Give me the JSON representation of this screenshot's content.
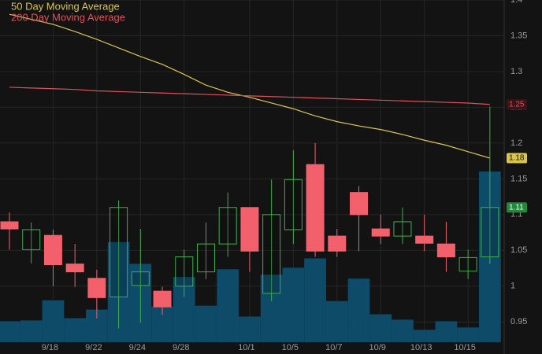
{
  "chart_data": {
    "type": "candlestick",
    "categories": [
      null,
      null,
      "9/18",
      null,
      "9/22",
      null,
      "9/24",
      null,
      "9/28",
      null,
      null,
      "10/1",
      null,
      "10/5",
      null,
      "10/7",
      null,
      "10/9",
      null,
      "10/13",
      null,
      "10/15",
      null
    ],
    "open": [
      1.09,
      1.051,
      1.071,
      1.031,
      1.011,
      0.985,
      1.001,
      0.993,
      1.0,
      1.02,
      1.059,
      1.11,
      0.99,
      1.079,
      1.17,
      1.07,
      1.131,
      1.08,
      1.07,
      1.07,
      1.059,
      1.021,
      1.041
    ],
    "high": [
      1.103,
      1.089,
      1.079,
      1.059,
      1.023,
      1.12,
      1.08,
      0.999,
      1.051,
      1.089,
      1.131,
      1.11,
      1.149,
      1.19,
      1.2,
      1.08,
      1.14,
      1.1,
      1.11,
      1.1,
      1.09,
      1.051,
      1.251
    ],
    "low": [
      1.051,
      1.032,
      1.0,
      0.999,
      0.955,
      0.941,
      0.949,
      0.96,
      0.985,
      1.01,
      1.041,
      1.02,
      0.979,
      1.059,
      1.041,
      1.041,
      1.049,
      1.059,
      1.059,
      1.049,
      1.02,
      1.01,
      1.031
    ],
    "close": [
      1.08,
      1.079,
      1.03,
      1.02,
      0.984,
      1.11,
      1.02,
      0.971,
      1.041,
      1.059,
      1.11,
      1.049,
      1.1,
      1.149,
      1.049,
      1.049,
      1.1,
      1.07,
      1.09,
      1.06,
      1.041,
      1.04,
      1.11
    ],
    "close_badge": "1.11",
    "volume": [
      27,
      28,
      54,
      31,
      42,
      129,
      101,
      46,
      84,
      47,
      94,
      33,
      87,
      96,
      108,
      53,
      82,
      36,
      29,
      16,
      27,
      19,
      220
    ],
    "up_color": "#3fae4c",
    "down_color": "#f2606c",
    "volume_color": "#0e4b68",
    "series": [
      {
        "name": "50 Day Moving Average",
        "color": "#d9c44e",
        "badge": "1.18",
        "values": [
          1.38,
          1.373,
          1.366,
          1.356,
          1.345,
          1.333,
          1.321,
          1.31,
          1.296,
          1.281,
          1.271,
          1.264,
          1.256,
          1.248,
          1.238,
          1.23,
          1.224,
          1.219,
          1.212,
          1.204,
          1.197,
          1.188,
          1.179
        ]
      },
      {
        "name": "200 Day Moving Average",
        "color": "#e0505a",
        "badge": "1.25",
        "values": [
          1.278,
          1.277,
          1.276,
          1.275,
          1.273,
          1.272,
          1.271,
          1.27,
          1.269,
          1.268,
          1.267,
          1.266,
          1.265,
          1.264,
          1.263,
          1.262,
          1.261,
          1.26,
          1.259,
          1.258,
          1.257,
          1.256,
          1.254
        ]
      }
    ],
    "ylim": [
      0.925,
      1.4
    ],
    "yticks": [
      0.95,
      1,
      1.05,
      1.1,
      1.15,
      1.2,
      1.25,
      1.3,
      1.35,
      1.4
    ],
    "grid": true
  }
}
